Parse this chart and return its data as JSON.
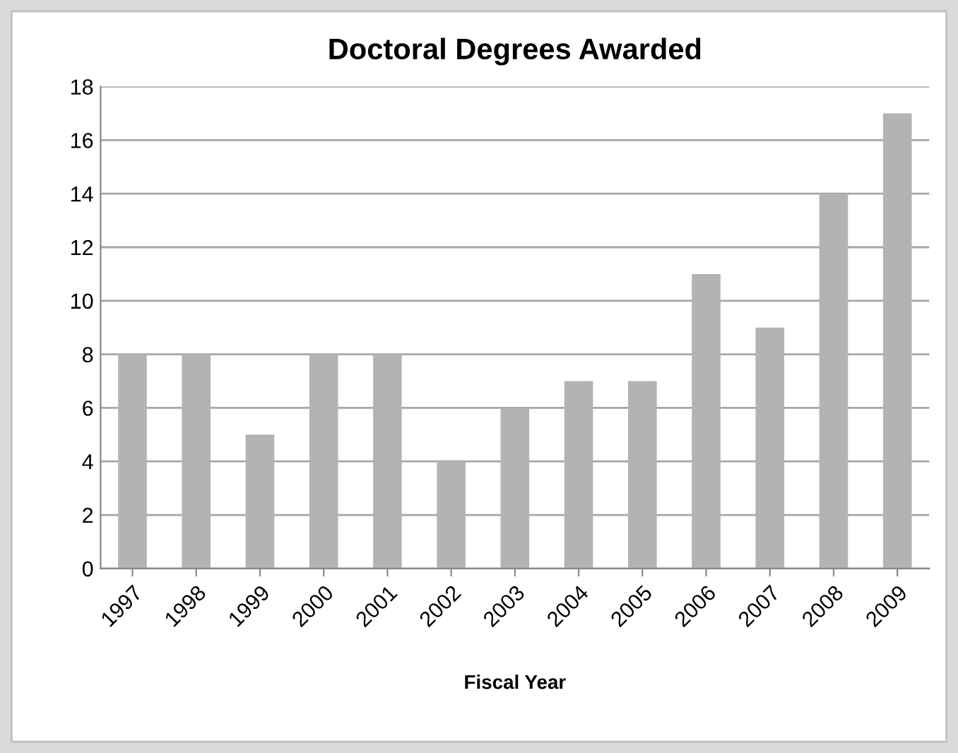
{
  "chart_data": {
    "type": "bar",
    "title": "Doctoral Degrees Awarded",
    "xlabel": "Fiscal Year",
    "categories": [
      "1997",
      "1998",
      "1999",
      "2000",
      "2001",
      "2002",
      "2003",
      "2004",
      "2005",
      "2006",
      "2007",
      "2008",
      "2009"
    ],
    "values": [
      8,
      8,
      5,
      8,
      8,
      4,
      6,
      7,
      7,
      11,
      9,
      14,
      17
    ],
    "color": "#b3b3b3",
    "ylim": [
      0,
      18
    ],
    "yticks": [
      0,
      2,
      4,
      6,
      8,
      10,
      12,
      14,
      16,
      18
    ],
    "grid": "y"
  }
}
